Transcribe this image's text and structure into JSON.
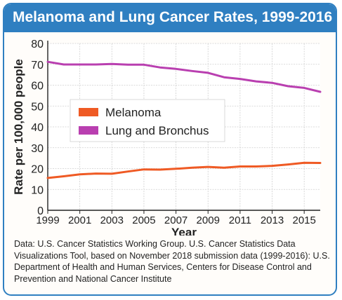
{
  "header": {
    "title": "Melanoma and Lung Cancer Rates, 1999-2016"
  },
  "footer": {
    "source": "Data: U.S. Cancer Statistics Working Group. U.S. Cancer Statistics Data Visualizations Tool, based on November 2018 submission data (1999-2016): U.S. Department of Health and Human Services, Centers for Disease Control and Prevention and National Cancer Institute"
  },
  "colors": {
    "frame": "#2f7fc1",
    "melanoma": "#ef5a24",
    "lung": "#b93fb0"
  },
  "chart_data": {
    "type": "line",
    "title": "Melanoma and Lung Cancer Rates, 1999-2016",
    "xlabel": "Year",
    "ylabel": "Rate per 100,000 people",
    "x": [
      1999,
      2000,
      2001,
      2002,
      2003,
      2004,
      2005,
      2006,
      2007,
      2008,
      2009,
      2010,
      2011,
      2012,
      2013,
      2014,
      2015,
      2016
    ],
    "x_ticks": [
      "1999",
      "2001",
      "2003",
      "2005",
      "2007",
      "2009",
      "2011",
      "2013",
      "2015"
    ],
    "y_ticks": [
      "0",
      "10",
      "20",
      "30",
      "40",
      "50",
      "60",
      "70",
      "80"
    ],
    "xlim": [
      1999,
      2016
    ],
    "ylim": [
      0,
      80
    ],
    "grid": true,
    "legend_position": "left-middle",
    "series": [
      {
        "name": "Melanoma",
        "color": "#ef5a24",
        "values": [
          15.5,
          16.3,
          17.2,
          17.6,
          17.5,
          18.6,
          19.6,
          19.5,
          19.9,
          20.4,
          20.8,
          20.4,
          21.0,
          21.0,
          21.3,
          22.0,
          22.8,
          22.7
        ]
      },
      {
        "name": "Lung and Bronchus",
        "color": "#b93fb0",
        "values": [
          71.2,
          69.9,
          69.9,
          69.9,
          70.2,
          69.8,
          69.8,
          68.5,
          67.8,
          66.8,
          65.9,
          63.8,
          63.0,
          61.8,
          61.1,
          59.5,
          58.7,
          56.8
        ]
      }
    ]
  }
}
